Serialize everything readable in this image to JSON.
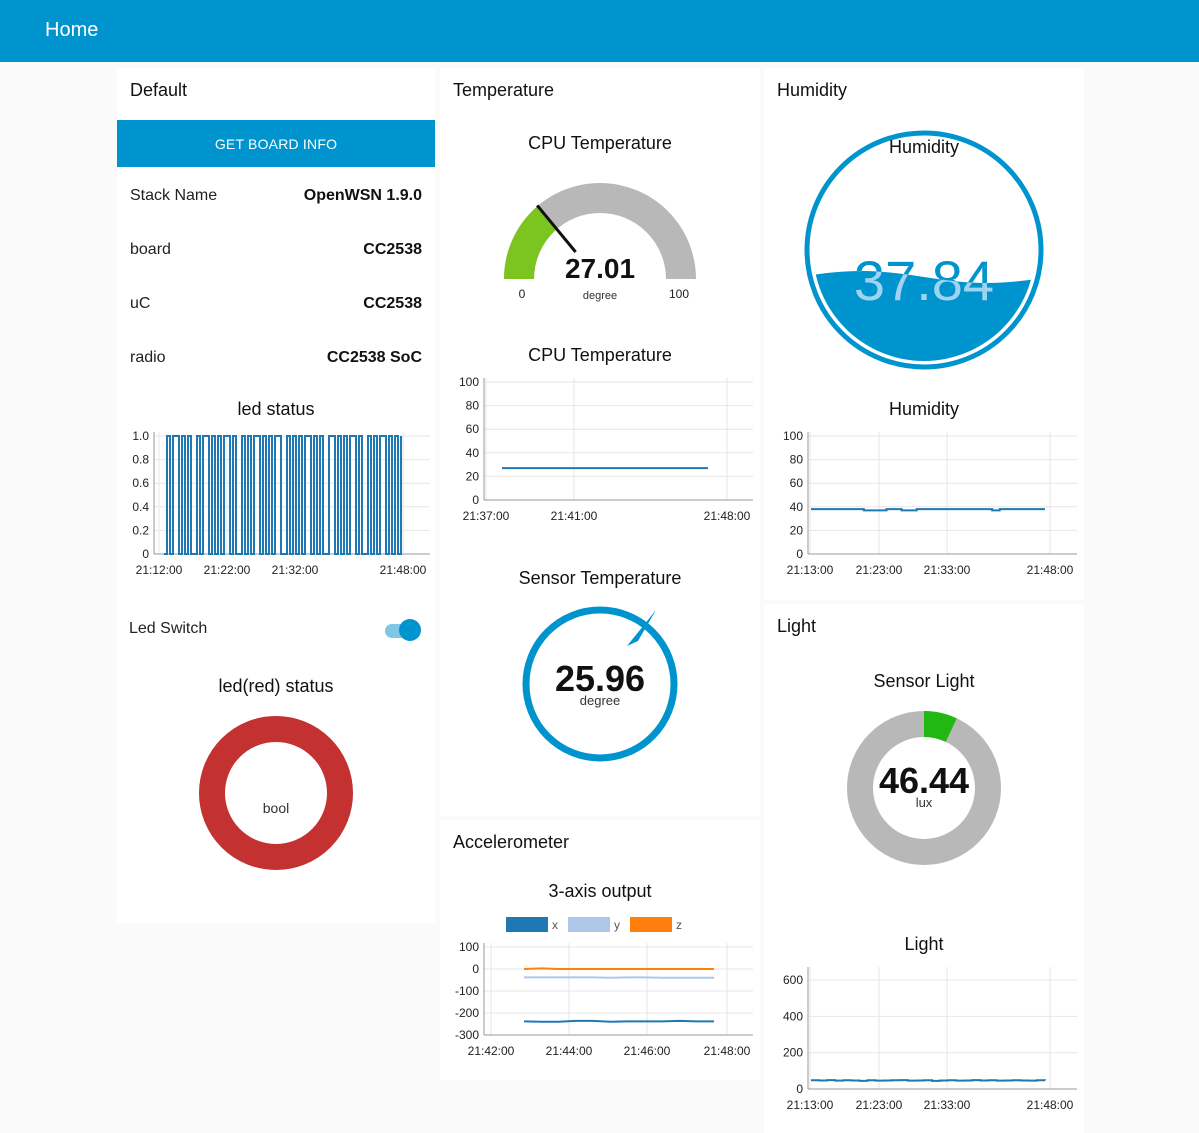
{
  "header": {
    "title": "Home"
  },
  "default_group": {
    "title": "Default",
    "button_label": "GET BOARD INFO",
    "info": [
      {
        "key": "Stack Name",
        "value": "OpenWSN 1.9.0"
      },
      {
        "key": "board",
        "value": "CC2538"
      },
      {
        "key": "uC",
        "value": "CC2538"
      },
      {
        "key": "radio",
        "value": "CC2538 SoC"
      }
    ],
    "led_chart_title": "led status",
    "led_switch_label": "Led Switch",
    "led_switch_state": true,
    "led_red_title": "led(red) status",
    "led_red_unit": "bool",
    "led_red_color": "#c33131"
  },
  "temperature_group": {
    "title": "Temperature",
    "cpu_gauge": {
      "title": "CPU Temperature",
      "value": "27.01",
      "unit": "degree",
      "min": "0",
      "max": "100",
      "level": 27.01,
      "color": "#7cc520"
    },
    "cpu_chart_title": "CPU Temperature",
    "sensor_gauge": {
      "title": "Sensor Temperature",
      "value": "25.96",
      "unit": "degree",
      "color": "#0094ce"
    }
  },
  "humidity_group": {
    "title": "Humidity",
    "gauge": {
      "title": "Humidity",
      "value": "37.84",
      "level": 37.84,
      "color": "#0094ce"
    },
    "chart_title": "Humidity"
  },
  "light_group": {
    "title": "Light",
    "gauge": {
      "title": "Sensor Light",
      "value": "46.44",
      "unit": "lux",
      "level_fraction": 0.07,
      "color": "#22b814"
    },
    "chart_title": "Light"
  },
  "accelerometer_group": {
    "title": "Accelerometer",
    "chart_title": "3-axis output"
  },
  "chart_data": [
    {
      "id": "led_status",
      "type": "line",
      "title": "led status",
      "x_ticks": [
        "21:12:00",
        "21:22:00",
        "21:32:00",
        "21:48:00"
      ],
      "y_ticks": [
        "0",
        "0.2",
        "0.4",
        "0.6",
        "0.8",
        "1.0"
      ],
      "ylim": [
        0,
        1
      ],
      "series": [
        {
          "values": [
            0,
            1,
            0,
            1,
            1,
            0,
            1,
            0,
            1,
            0,
            0,
            1,
            0,
            1,
            1,
            0,
            1,
            0,
            1,
            0,
            1,
            1,
            0,
            1,
            0,
            0,
            1,
            0,
            1,
            0,
            1,
            1,
            0,
            1,
            0,
            1,
            0,
            1,
            1,
            0,
            0,
            1,
            0,
            1,
            0,
            1,
            0,
            1,
            1,
            0,
            1,
            0,
            1,
            0,
            0,
            1,
            1,
            0,
            1,
            0,
            1,
            0,
            1,
            1,
            0,
            1,
            0,
            0,
            1,
            0,
            1,
            0,
            1,
            1,
            0,
            1,
            0,
            1,
            0,
            1
          ]
        }
      ],
      "color": "#1f77b4"
    },
    {
      "id": "cpu_temperature",
      "type": "line",
      "title": "CPU Temperature",
      "x_ticks": [
        "21:37:00",
        "21:41:00",
        "21:48:00"
      ],
      "y_ticks": [
        "0",
        "20",
        "40",
        "60",
        "80",
        "100"
      ],
      "ylim": [
        0,
        100
      ],
      "series": [
        {
          "values": [
            27,
            27,
            27,
            27,
            27,
            27,
            27,
            27,
            27,
            27
          ]
        }
      ],
      "color": "#1f77b4"
    },
    {
      "id": "humidity",
      "type": "line",
      "title": "Humidity",
      "x_ticks": [
        "21:13:00",
        "21:23:00",
        "21:33:00",
        "21:48:00"
      ],
      "y_ticks": [
        "0",
        "20",
        "40",
        "60",
        "80",
        "100"
      ],
      "ylim": [
        0,
        100
      ],
      "series": [
        {
          "values": [
            38,
            38,
            38,
            38,
            38,
            38,
            38,
            37,
            37,
            37,
            38,
            38,
            37,
            37,
            38,
            38,
            38,
            38,
            38,
            38,
            38,
            38,
            38,
            38,
            37,
            38,
            38,
            38,
            38,
            38,
            38,
            38
          ]
        }
      ],
      "color": "#1f77b4"
    },
    {
      "id": "light",
      "type": "line",
      "title": "Light",
      "x_ticks": [
        "21:13:00",
        "21:23:00",
        "21:33:00",
        "21:48:00"
      ],
      "y_ticks": [
        "0",
        "200",
        "400",
        "600"
      ],
      "ylim": [
        0,
        650
      ],
      "series": [
        {
          "values": [
            48,
            47,
            49,
            46,
            48,
            47,
            45,
            48,
            46,
            47,
            48,
            49,
            46,
            47,
            48,
            45,
            47,
            48,
            46,
            47,
            49,
            47,
            48,
            46,
            47,
            48,
            47,
            46,
            48,
            47
          ]
        }
      ],
      "color": "#1f77b4"
    },
    {
      "id": "accelerometer",
      "type": "line",
      "title": "3-axis output",
      "x_ticks": [
        "21:42:00",
        "21:44:00",
        "21:46:00",
        "21:48:00"
      ],
      "y_ticks": [
        "-300",
        "-200",
        "-100",
        "0",
        "100"
      ],
      "ylim": [
        -300,
        100
      ],
      "legend": [
        "x",
        "y",
        "z"
      ],
      "series": [
        {
          "name": "x",
          "color": "#1f77b4",
          "values": [
            -238,
            -240,
            -240,
            -236,
            -236,
            -240,
            -238,
            -238,
            -238,
            -236,
            -238,
            -238
          ]
        },
        {
          "name": "y",
          "color": "#aec7e8",
          "values": [
            -38,
            -38,
            -38,
            -38,
            -38,
            -40,
            -38,
            -38,
            -40,
            -40,
            -40,
            -40
          ]
        },
        {
          "name": "z",
          "color": "#ff7f0e",
          "values": [
            0,
            3,
            0,
            0,
            0,
            0,
            0,
            0,
            0,
            0,
            0,
            0
          ]
        }
      ]
    }
  ]
}
